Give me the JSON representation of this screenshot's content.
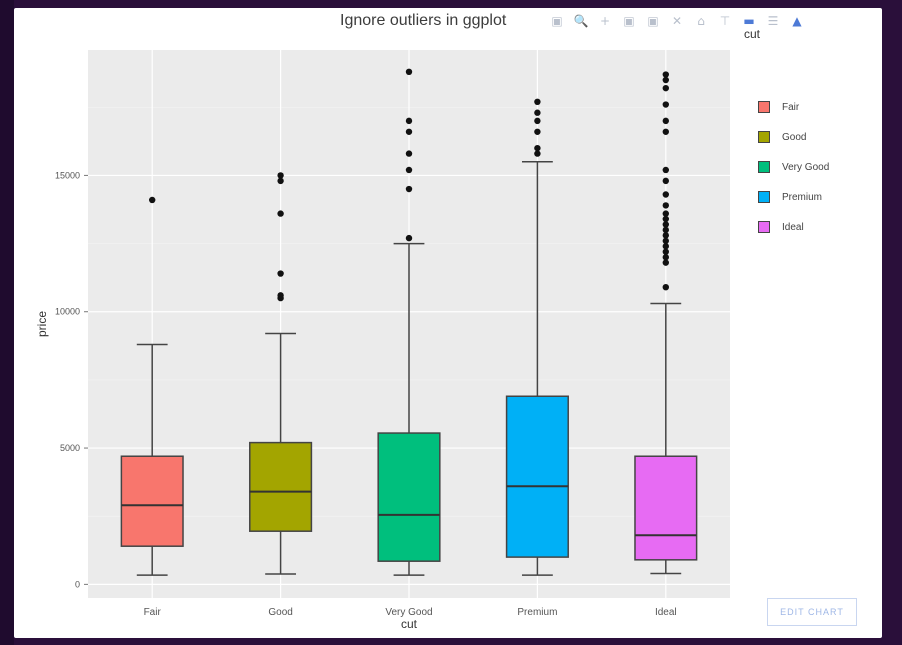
{
  "window": {
    "title": "Ignore outliers in ggplot"
  },
  "modebar": {
    "icons": [
      "camera-icon",
      "zoom-icon",
      "pan-icon",
      "zoom-in-icon",
      "zoom-out-icon",
      "autoscale-icon",
      "reset-axes-icon",
      "spike-lines-icon",
      "hover-closest-icon",
      "hover-compare-icon",
      "plotly-logo-icon"
    ]
  },
  "legend": {
    "title": "cut"
  },
  "edit_chart_label": "EDIT CHART",
  "colors": {
    "plot_bg": "#ebebeb",
    "grid": "#ffffff",
    "Fair": "#f8766d",
    "Good": "#a3a500",
    "Very Good": "#00bf7d",
    "Premium": "#00b0f6",
    "Ideal": "#e76bf3"
  },
  "chart_data": {
    "type": "box",
    "title": "Ignore outliers in ggplot",
    "xlabel": "cut",
    "ylabel": "price",
    "ylim": [
      -500,
      19600
    ],
    "yticks": [
      0,
      5000,
      10000,
      15000
    ],
    "ytick_labels": [
      "0",
      "5000",
      "10000",
      "15000"
    ],
    "categories": [
      "Fair",
      "Good",
      "Very Good",
      "Premium",
      "Ideal"
    ],
    "grid": true,
    "legend_position": "right",
    "series": [
      {
        "name": "Fair",
        "min": 340,
        "q1": 1400,
        "median": 2900,
        "q3": 4700,
        "max": 8800,
        "outliers": [
          14100
        ]
      },
      {
        "name": "Good",
        "min": 380,
        "q1": 1950,
        "median": 3400,
        "q3": 5200,
        "max": 9200,
        "outliers": [
          10500,
          10600,
          11400,
          13600,
          14800,
          15000
        ]
      },
      {
        "name": "Very Good",
        "min": 340,
        "q1": 850,
        "median": 2550,
        "q3": 5550,
        "max": 12500,
        "outliers": [
          12700,
          14500,
          15200,
          15800,
          16600,
          17000,
          18800
        ]
      },
      {
        "name": "Premium",
        "min": 340,
        "q1": 1000,
        "median": 3600,
        "q3": 6900,
        "max": 15500,
        "outliers": [
          15800,
          16000,
          16600,
          17000,
          17300,
          17700
        ]
      },
      {
        "name": "Ideal",
        "min": 400,
        "q1": 900,
        "median": 1800,
        "q3": 4700,
        "max": 10300,
        "outliers": [
          10900,
          11800,
          12000,
          12200,
          12400,
          12600,
          12800,
          13000,
          13200,
          13400,
          13600,
          13900,
          14300,
          14800,
          15200,
          16600,
          17000,
          17600,
          18200,
          18500,
          18700
        ]
      }
    ]
  }
}
